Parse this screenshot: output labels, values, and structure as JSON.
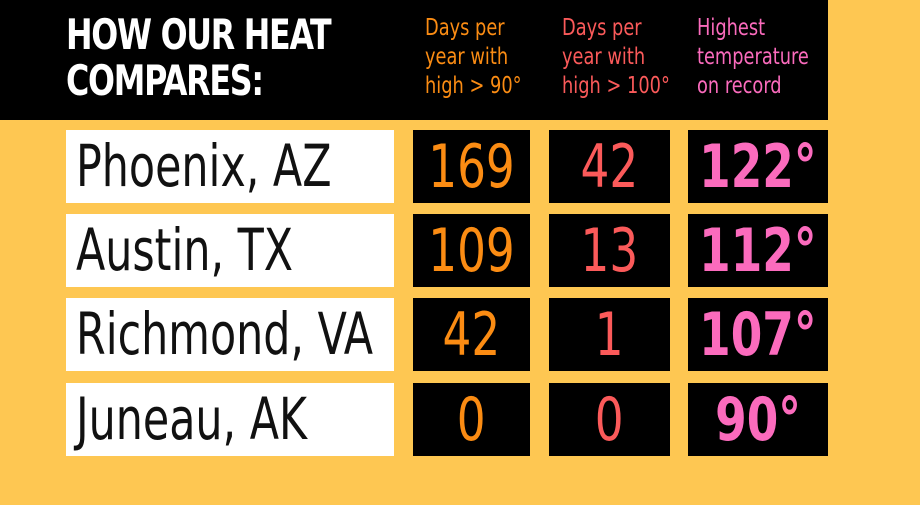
{
  "colors": {
    "background": "#fec752",
    "panel": "#000000",
    "city_box": "#ffffff",
    "title": "#ffffff",
    "col90": "#fb8c13",
    "col100": "#fb5a5a",
    "record": "#fb6bbd"
  },
  "title": "HOW OUR HEAT COMPARES:",
  "headers": {
    "days90": [
      "Days per",
      "year with",
      "high > 90°"
    ],
    "days100": [
      "Days per",
      "year with",
      "high > 100°"
    ],
    "record": [
      "Highest",
      "temperature",
      "on record"
    ]
  },
  "rows": [
    {
      "city": "Phoenix, AZ",
      "days90": "169",
      "days100": "42",
      "record": "122°"
    },
    {
      "city": "Austin, TX",
      "days90": "109",
      "days100": "13",
      "record": "112°"
    },
    {
      "city": "Richmond, VA",
      "days90": "42",
      "days100": "1",
      "record": "107°"
    },
    {
      "city": "Juneau, AK",
      "days90": "0",
      "days100": "0",
      "record": "90°"
    }
  ]
}
